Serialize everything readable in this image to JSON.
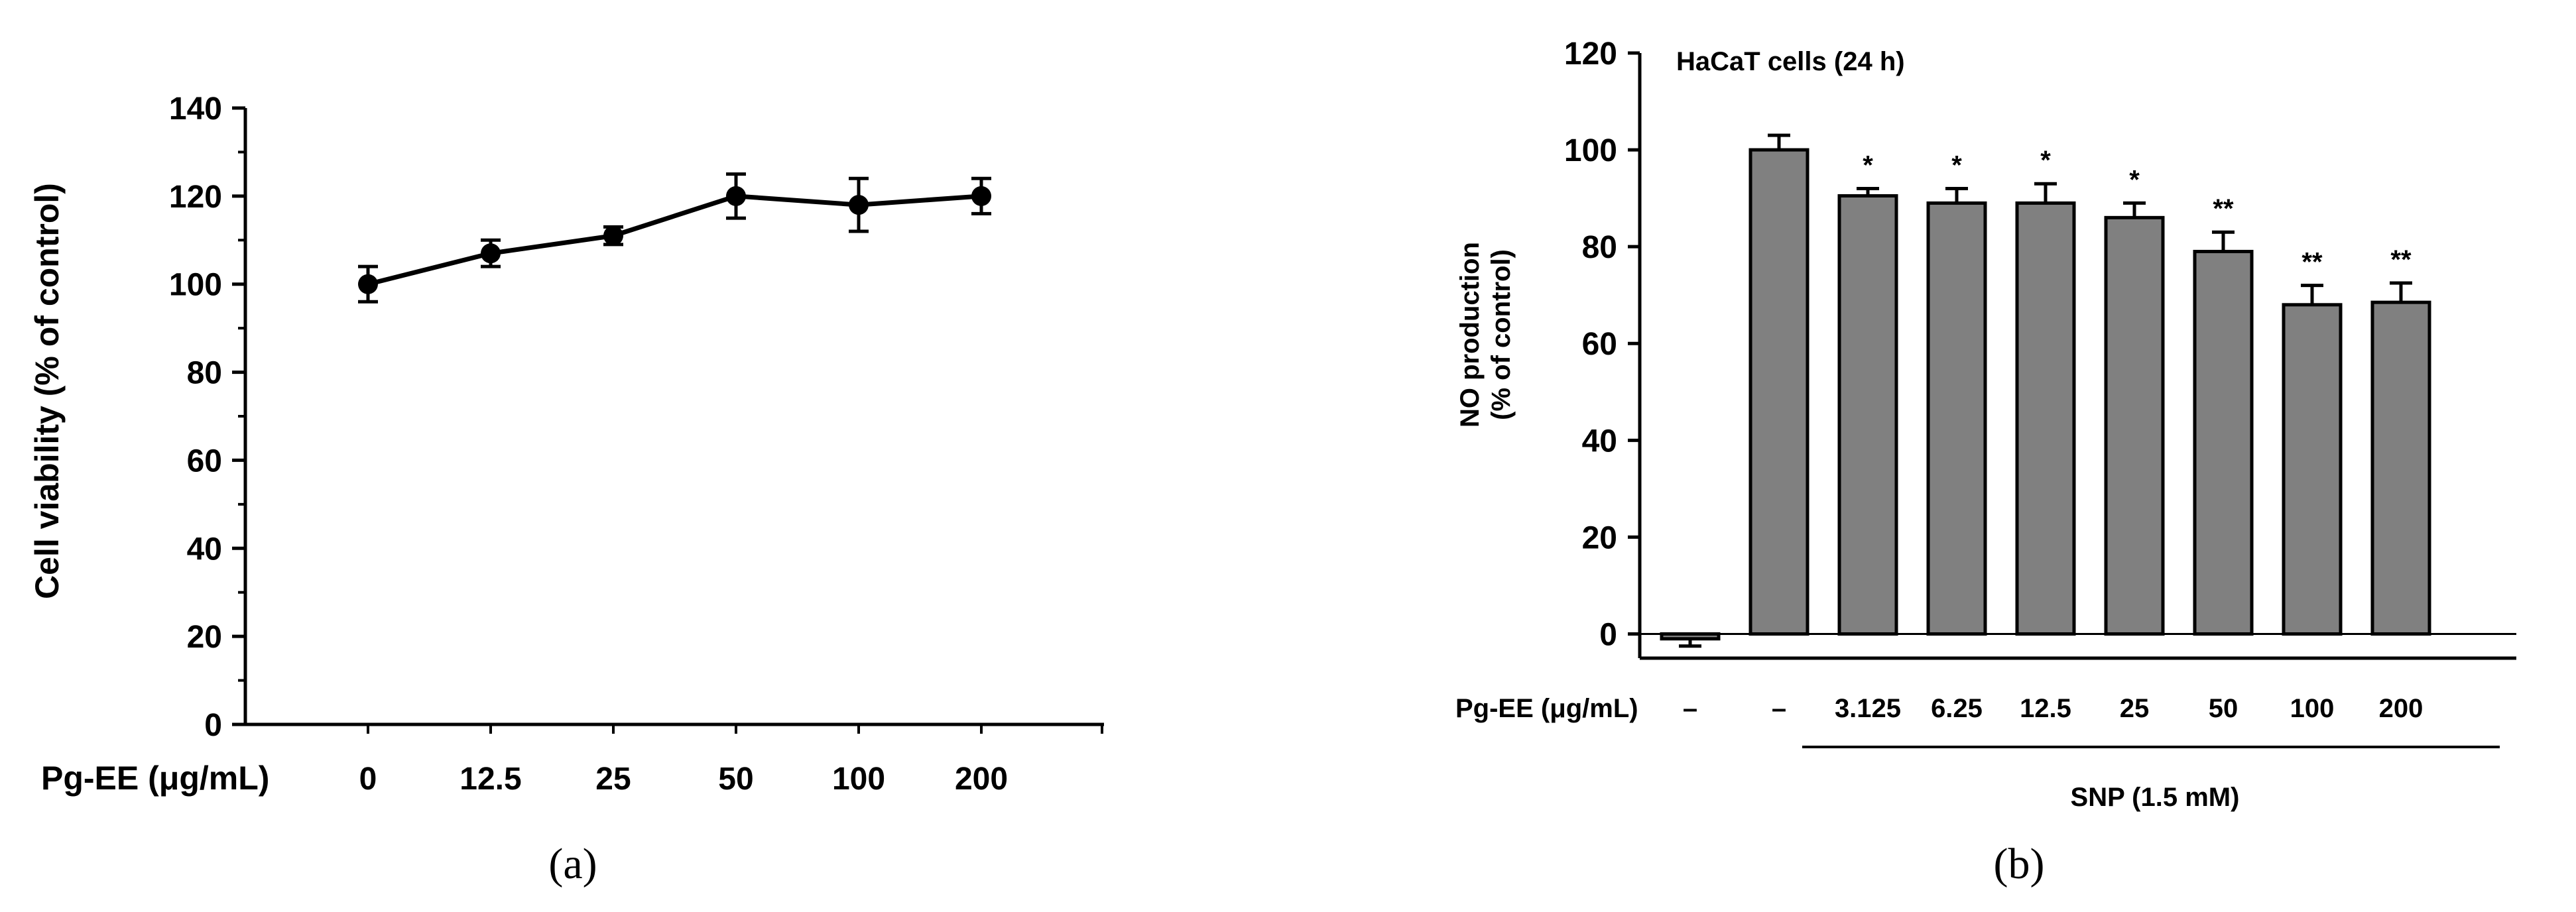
{
  "chart_data": [
    {
      "panel": "(a)",
      "type": "line",
      "xlabel": "Pg-EE (μg/mL)",
      "ylabel": "Cell viability (% of control)",
      "categories": [
        "0",
        "12.5",
        "25",
        "50",
        "100",
        "200"
      ],
      "values": [
        100,
        107,
        111,
        120,
        118,
        120
      ],
      "errors": [
        4,
        3,
        2,
        5,
        6,
        4
      ],
      "ylim": [
        0,
        140
      ],
      "yticks": [
        0,
        20,
        40,
        60,
        80,
        100,
        120,
        140
      ]
    },
    {
      "panel": "(b)",
      "type": "bar",
      "title": "HaCaT cells (24 h)",
      "xlabel": "Pg-EE (μg/mL)",
      "ylabel_line1": "NO production",
      "ylabel_line2": "(% of control)",
      "categories": [
        "–",
        "–",
        "3.125",
        "6.25",
        "12.5",
        "25",
        "50",
        "100",
        "200"
      ],
      "values": [
        -1,
        100,
        90.5,
        89,
        89,
        86,
        79,
        68,
        68.5
      ],
      "errors": [
        1.5,
        3,
        1.5,
        3,
        4,
        3,
        4,
        4,
        4
      ],
      "significance": [
        "",
        "",
        "*",
        "*",
        "*",
        "*",
        "**",
        "**",
        "**"
      ],
      "group_label": "SNP (1.5 mM)",
      "ylim": [
        -5,
        120
      ],
      "yticks": [
        0,
        20,
        40,
        60,
        80,
        100,
        120
      ],
      "bar_color": "#808080"
    }
  ]
}
